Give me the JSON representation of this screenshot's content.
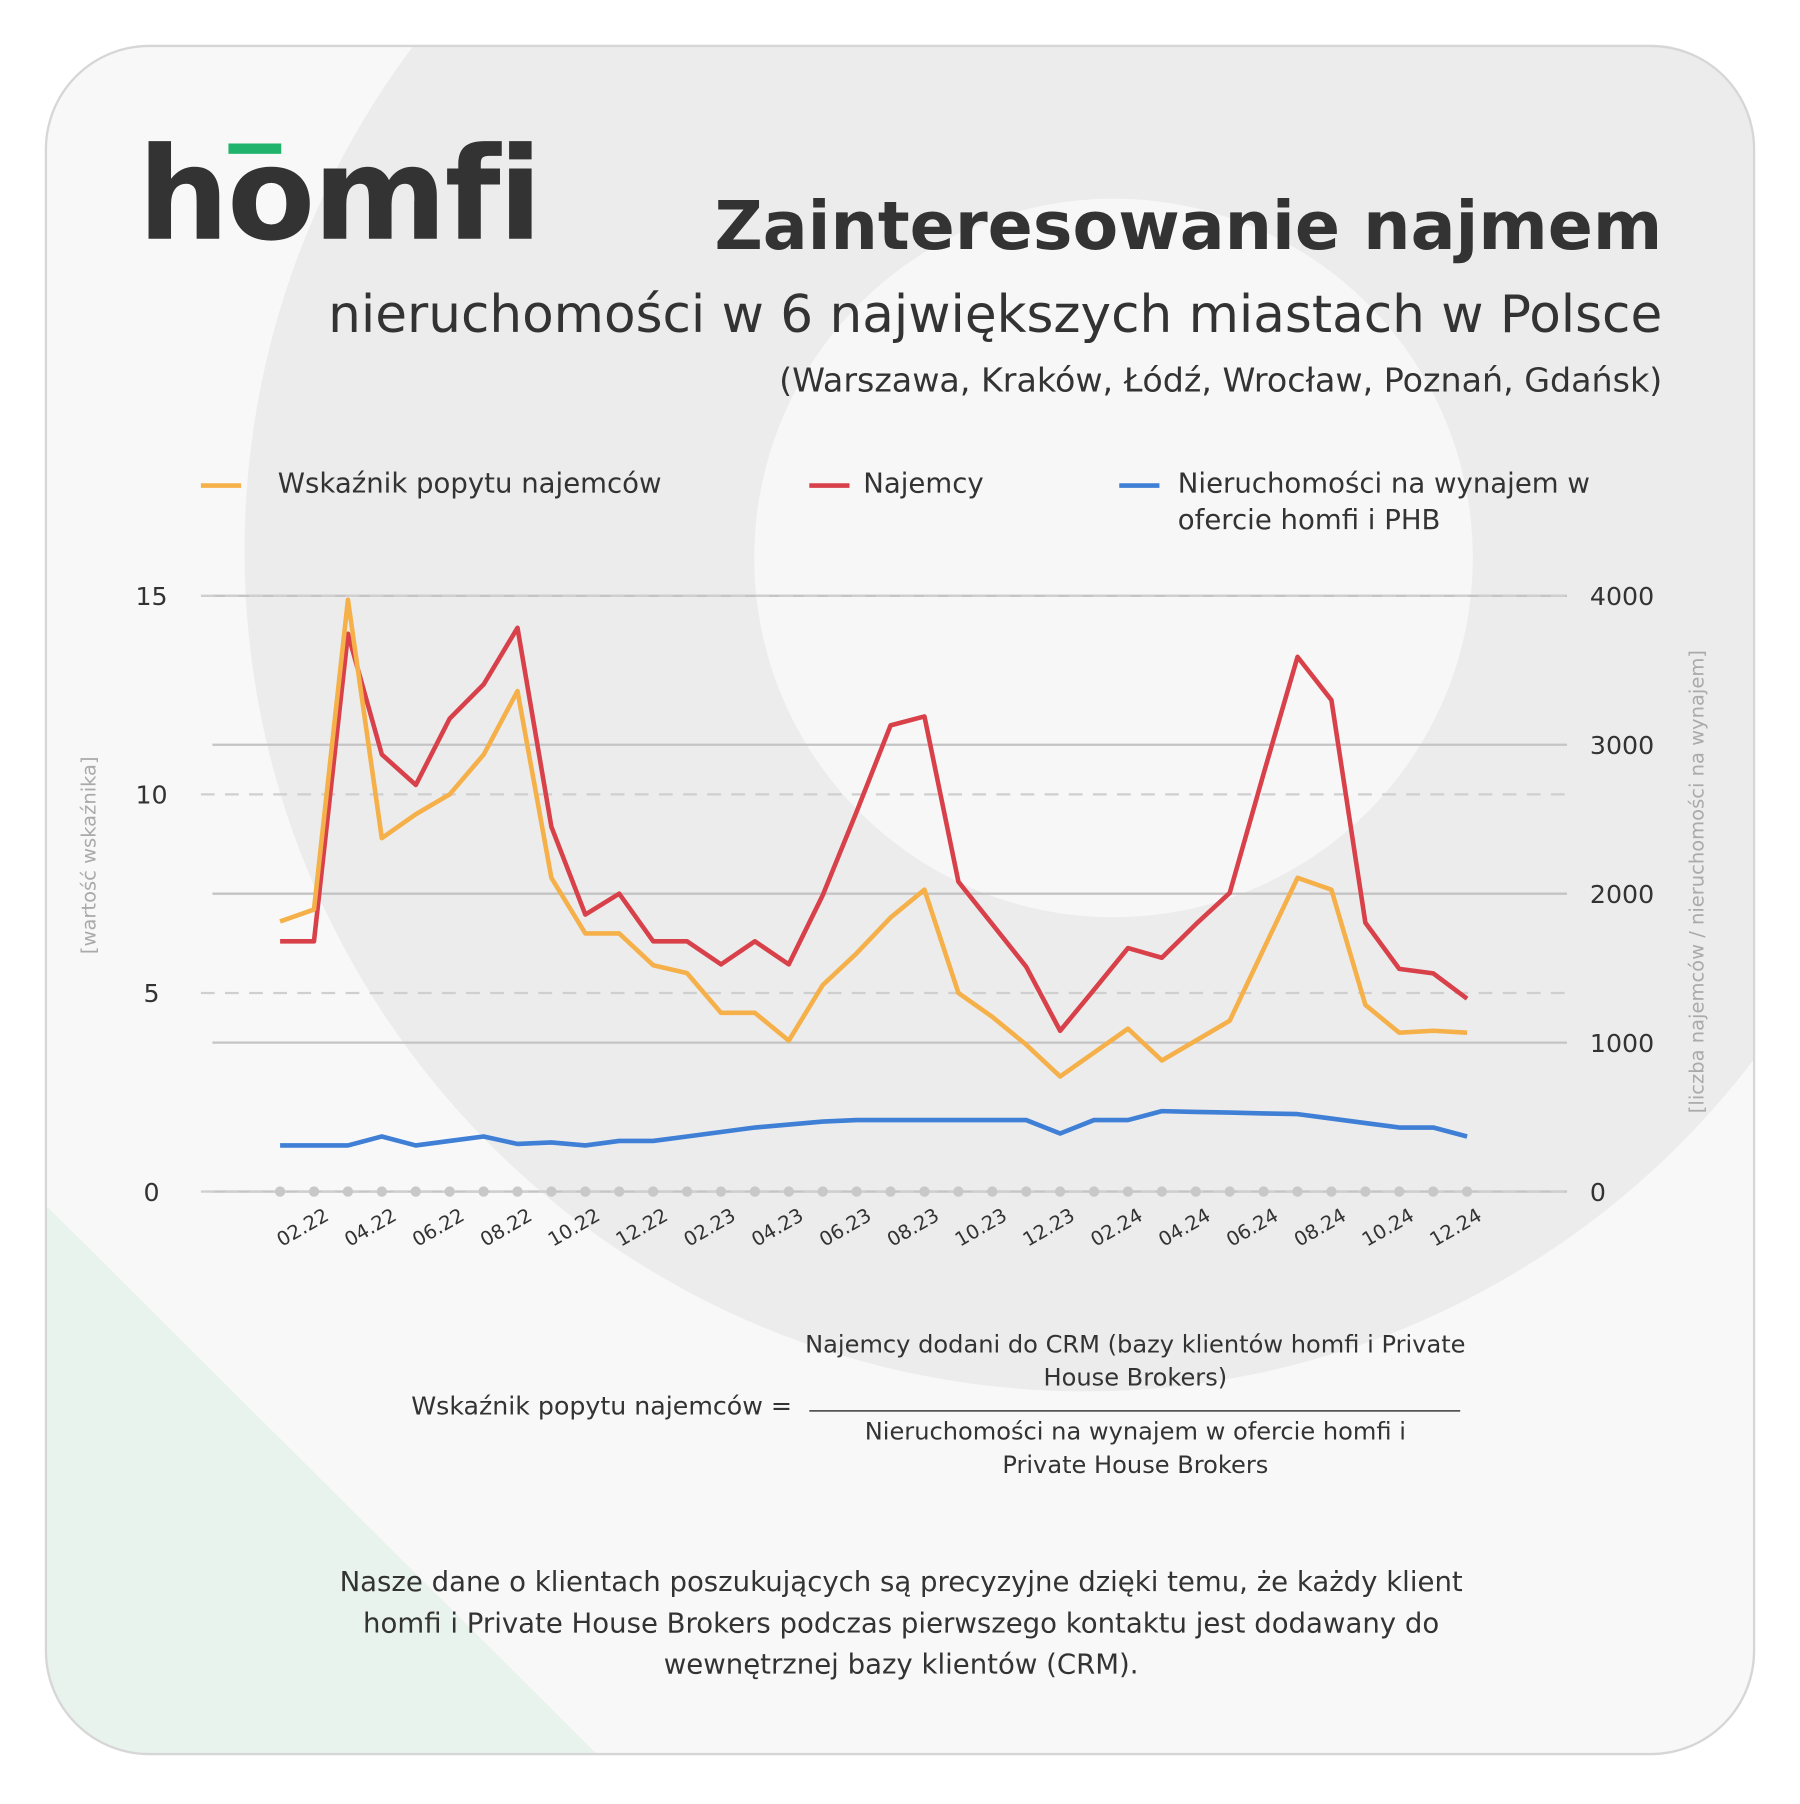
{
  "logo": "homfi",
  "chart_data": {
    "type": "line",
    "title": "Zainteresowanie najmem",
    "subtitle": "nieruchomości w 6 największych miastach w Polsce",
    "subtitle2": "(Warszawa, Kraków, Łódź, Wrocław, Poznań, Gdańsk)",
    "y_label": "[wartość wskaźnika]",
    "y2_label": "[liczba najemców / nieruchomości na wynajem]",
    "categories": [
      null,
      "02.22",
      null,
      "04.22",
      null,
      "06.22",
      null,
      "08.22",
      null,
      "10.22",
      null,
      "12.22",
      null,
      "02.23",
      null,
      "04.23",
      null,
      "06.23",
      null,
      "08.23",
      null,
      "10.23",
      null,
      "12.23",
      null,
      "02.24",
      null,
      "04.24",
      null,
      "06.24",
      null,
      "08.24",
      null,
      "10.24",
      null,
      "12.24"
    ],
    "series": [
      {
        "name": "Wskaźnik popytu najemców",
        "color": "#f5b04a",
        "values": [
          6.8,
          7.1,
          14.9,
          8.9,
          9.5,
          10.0,
          11.0,
          12.6,
          7.9,
          6.5,
          6.5,
          5.7,
          5.5,
          4.5,
          4.5,
          3.8,
          5.2,
          6.0,
          6.9,
          7.6,
          5.0,
          4.4,
          3.7,
          2.9,
          3.5,
          4.1,
          3.3,
          3.8,
          4.3,
          6.1,
          7.9,
          7.6,
          4.7,
          4.0,
          4.05,
          4.0
        ]
      },
      {
        "name": "Najemcy",
        "color": "#d9414a",
        "axis": "y2",
        "values": [
          1680,
          1680,
          3745,
          2935,
          2730,
          3175,
          3405,
          3785,
          2450,
          1860,
          2000,
          1680,
          1680,
          1525,
          1680,
          1525,
          1990,
          2550,
          3130,
          3190,
          2080,
          1795,
          1510,
          1080,
          1355,
          1635,
          1570,
          1795,
          2005,
          2805,
          3590,
          3300,
          1805,
          1495,
          1465,
          1295
        ]
      },
      {
        "name": "Nieruchomości na wynajem w ofercie homfi i PHB",
        "color": "#3f7fd6",
        "axis": "y2",
        "values": [
          310,
          310,
          310,
          370,
          310,
          340,
          370,
          320,
          330,
          310,
          340,
          340,
          370,
          400,
          430,
          450,
          470,
          480,
          480,
          480,
          480,
          480,
          480,
          390,
          480,
          480,
          540,
          535,
          530,
          525,
          520,
          490,
          460,
          430,
          430,
          370
        ]
      }
    ],
    "ylim": [
      0,
      15
    ],
    "yticks": [
      0,
      5,
      10,
      15
    ],
    "y2lim": [
      0,
      4000
    ],
    "y2ticks": [
      0,
      1000,
      2000,
      3000,
      4000
    ],
    "grid": true
  },
  "formula": {
    "left": "Wskaźnik popytu najemców =",
    "numerator": "Najemcy dodani do CRM (bazy klientów homfi i Private House Brokers)",
    "denominator": "Nieruchomości na wynajem w ofercie homfi i Private House Brokers"
  },
  "note": "Nasze dane o klientach poszukujących są precyzyjne dzięki temu, że każdy klient homfi i Private House Brokers podczas pierwszego kontaktu jest dodawany do wewnętrznej bazy klientów (CRM)."
}
